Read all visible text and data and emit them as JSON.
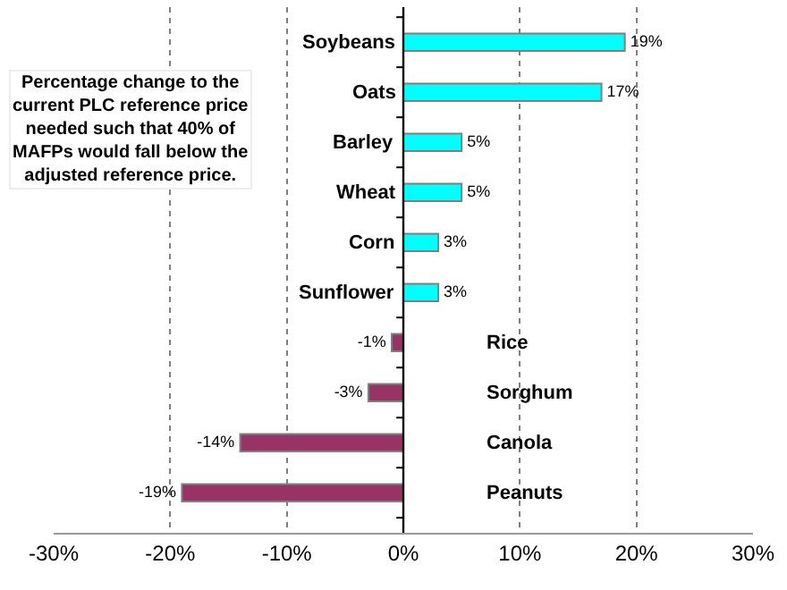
{
  "chart_data": {
    "type": "bar",
    "orientation": "horizontal",
    "categories": [
      "Soybeans",
      "Oats",
      "Barley",
      "Wheat",
      "Corn",
      "Sunflower",
      "Rice",
      "Sorghum",
      "Canola",
      "Peanuts"
    ],
    "values": [
      19,
      17,
      5,
      5,
      3,
      3,
      -1,
      -3,
      -14,
      -19
    ],
    "colors": [
      "#00ffff",
      "#00ffff",
      "#00ffff",
      "#00ffff",
      "#00ffff",
      "#00ffff",
      "#993366",
      "#993366",
      "#993366",
      "#993366"
    ],
    "value_labels": [
      "19%",
      "17%",
      "5%",
      "5%",
      "3%",
      "3%",
      "-1%",
      "-3%",
      "-14%",
      "-19%"
    ],
    "xlim": [
      -30,
      30
    ],
    "xticks": [
      {
        "value": -30,
        "label": "-30%"
      },
      {
        "value": -20,
        "label": "-20%"
      },
      {
        "value": -10,
        "label": "-10%"
      },
      {
        "value": 0,
        "label": "0%"
      },
      {
        "value": 10,
        "label": "10%"
      },
      {
        "value": 20,
        "label": "20%"
      },
      {
        "value": 30,
        "label": "30%"
      }
    ],
    "grid": "x",
    "annotations": [
      "Percentage change to the\ncurrent PLC reference price\nneeded such that 40% of\nMAFPs would fall below the\nadjusted reference price."
    ]
  }
}
